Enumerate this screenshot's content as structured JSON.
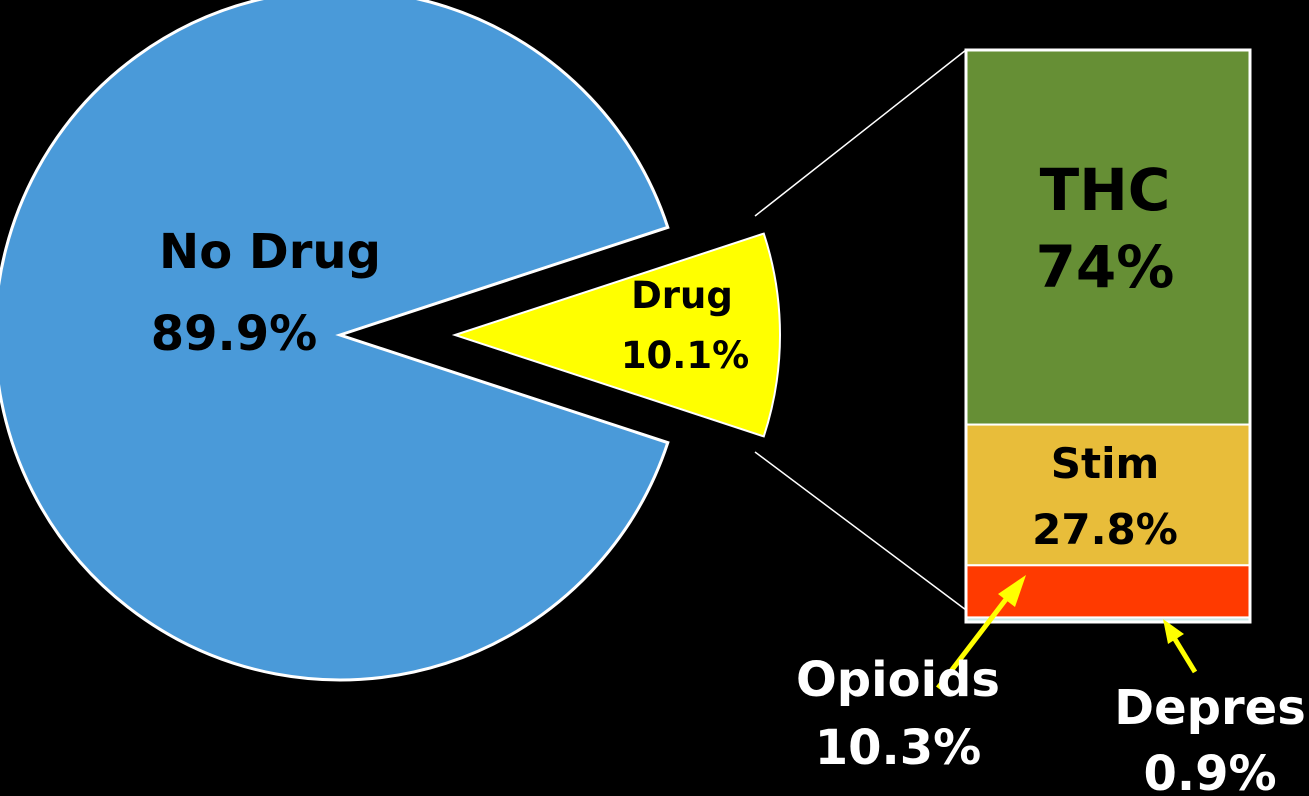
{
  "chart_data": {
    "type": "pie",
    "title": "",
    "slices": [
      {
        "label": "No Drug",
        "value_text": "89.9%",
        "value": 89.9,
        "color": "#4a9ad9"
      },
      {
        "label": "Drug",
        "value_text": "10.1%",
        "value": 10.1,
        "color": "#ffff00"
      }
    ],
    "breakdown": {
      "type": "stacked-bar",
      "of_slice": "Drug",
      "segments": [
        {
          "label": "THC",
          "value_text": "74%",
          "value": 74,
          "color": "#668f35"
        },
        {
          "label": "Stim",
          "value_text": "27.8%",
          "value": 27.8,
          "color": "#e8bd3a"
        },
        {
          "label": "Opioids",
          "value_text": "10.3%",
          "value": 10.3,
          "color": "#ff3a00"
        },
        {
          "label": "Depres",
          "value_text": "0.9%",
          "value": 0.9,
          "color": "#c9e8e6"
        }
      ]
    },
    "colors": {
      "background": "#000000",
      "outline": "#ffffff",
      "label_dark": "#000000",
      "label_light": "#ffffff",
      "arrow": "#ffff00"
    }
  }
}
